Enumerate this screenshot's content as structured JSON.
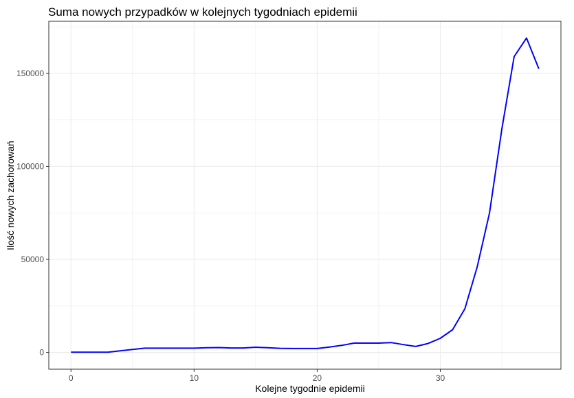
{
  "chart_data": {
    "type": "line",
    "title": "Suma nowych przypadków w kolejnych tygodniach epidemii",
    "xlabel": "Kolejne tygodnie epidemii",
    "ylabel": "Ilość nowych zachorowań",
    "xlim": [
      -1.8,
      39.8
    ],
    "ylim": [
      -9000,
      178000
    ],
    "x_ticks": [
      0,
      10,
      20,
      30
    ],
    "x_tick_labels": [
      "0",
      "10",
      "20",
      "30"
    ],
    "y_ticks": [
      0,
      50000,
      100000,
      150000
    ],
    "y_tick_labels": [
      "0",
      "50000",
      "100000",
      "150000"
    ],
    "grid": true,
    "line_color": "#0000ff",
    "series": [
      {
        "x": [
          0,
          1,
          2,
          3,
          4,
          5,
          6,
          7,
          8,
          9,
          10,
          11,
          12,
          13,
          14,
          15,
          16,
          17,
          18,
          19,
          20,
          21,
          22,
          23,
          24,
          25,
          26,
          27,
          28,
          29,
          30,
          31,
          32,
          33,
          34,
          35,
          36,
          37,
          38
        ],
        "values": [
          100,
          100,
          100,
          100,
          900,
          1600,
          2300,
          2300,
          2300,
          2300,
          2300,
          2500,
          2600,
          2400,
          2400,
          2800,
          2500,
          2200,
          2100,
          2100,
          2100,
          2900,
          3800,
          5000,
          5000,
          5000,
          5300,
          4200,
          3200,
          4800,
          7600,
          12200,
          23500,
          46000,
          75000,
          120000,
          159000,
          169000,
          152500
        ]
      }
    ]
  }
}
